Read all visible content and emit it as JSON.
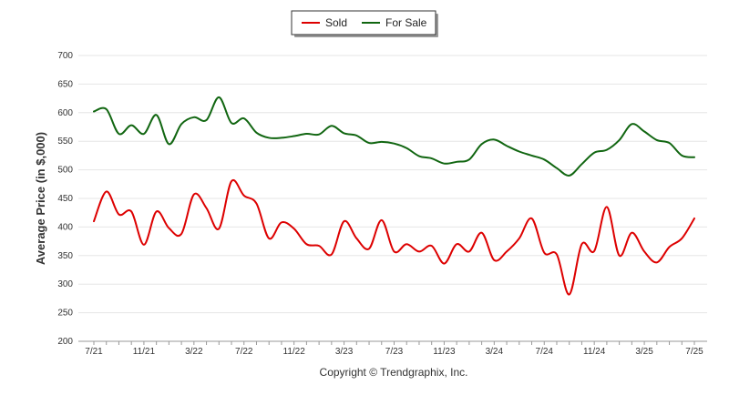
{
  "chart_data": {
    "type": "line",
    "title": "",
    "xlabel": "",
    "ylabel": "Average Price (in $,000)",
    "ylim": [
      200,
      700
    ],
    "yticks": [
      200,
      250,
      300,
      350,
      400,
      450,
      500,
      550,
      600,
      650,
      700
    ],
    "grid": "horizontal",
    "legend_position": "top-center",
    "footer": "Copyright © Trendgraphix, Inc.",
    "x_tick_labels": [
      "7/21",
      "11/21",
      "3/22",
      "7/22",
      "11/22",
      "3/23",
      "7/23",
      "11/23",
      "3/24",
      "7/24",
      "11/24",
      "3/25",
      "7/25"
    ],
    "x": [
      "7/21",
      "8/21",
      "9/21",
      "10/21",
      "11/21",
      "12/21",
      "1/22",
      "2/22",
      "3/22",
      "4/22",
      "5/22",
      "6/22",
      "7/22",
      "8/22",
      "9/22",
      "10/22",
      "11/22",
      "12/22",
      "1/23",
      "2/23",
      "3/23",
      "4/23",
      "5/23",
      "6/23",
      "7/23",
      "8/23",
      "9/23",
      "10/23",
      "11/23",
      "12/23",
      "1/24",
      "2/24",
      "3/24",
      "4/24",
      "5/24",
      "6/24",
      "7/24",
      "8/24",
      "9/24",
      "10/24",
      "11/24",
      "12/24",
      "1/25",
      "2/25",
      "3/25",
      "4/25",
      "5/25",
      "6/25",
      "7/25"
    ],
    "series": [
      {
        "name": "Sold",
        "color": "#dd0000",
        "values": [
          410,
          462,
          422,
          427,
          369,
          427,
          398,
          388,
          457,
          433,
          397,
          480,
          455,
          441,
          380,
          408,
          397,
          370,
          367,
          352,
          410,
          380,
          362,
          412,
          357,
          370,
          357,
          367,
          336,
          370,
          357,
          390,
          342,
          357,
          380,
          415,
          355,
          352,
          282,
          370,
          358,
          435,
          350,
          390,
          357,
          338,
          365,
          380,
          415
        ]
      },
      {
        "name": "For Sale",
        "color": "#116611",
        "values": [
          602,
          606,
          563,
          578,
          563,
          596,
          545,
          580,
          592,
          587,
          627,
          582,
          590,
          565,
          556,
          556,
          559,
          563,
          562,
          577,
          564,
          560,
          547,
          549,
          546,
          538,
          524,
          520,
          511,
          514,
          518,
          545,
          553,
          542,
          532,
          525,
          518,
          503,
          490,
          510,
          530,
          535,
          552,
          580,
          567,
          552,
          547,
          525,
          522
        ]
      }
    ]
  }
}
